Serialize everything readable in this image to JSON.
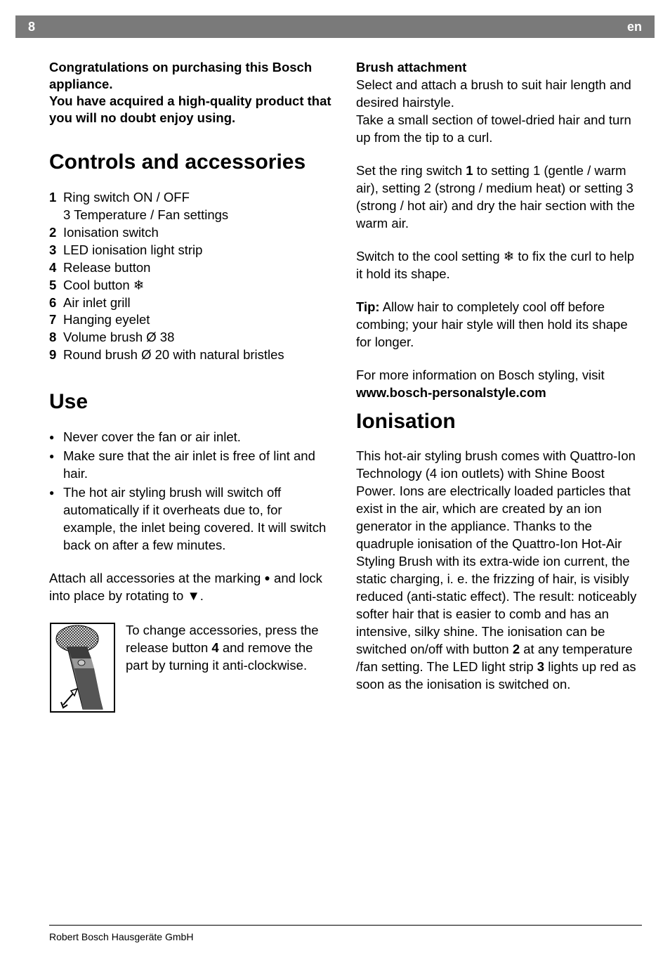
{
  "header": {
    "page": "8",
    "lang": "en"
  },
  "intro": "Congratulations on purchasing this Bosch appliance.\nYou have acquired a high-quality product that you will no doubt enjoy using.",
  "section1": {
    "title": "Controls and accessories",
    "items": [
      {
        "n": "1",
        "t": "Ring switch ON / OFF"
      },
      {
        "n": "",
        "t": "3 Temperature / Fan settings",
        "indent": true
      },
      {
        "n": "2",
        "t": "Ionisation switch"
      },
      {
        "n": "3",
        "t": "LED ionisation light strip"
      },
      {
        "n": "4",
        "t": "Release button"
      },
      {
        "n": "5",
        "t": "Cool button ❄"
      },
      {
        "n": "6",
        "t": "Air inlet grill"
      },
      {
        "n": "7",
        "t": "Hanging eyelet"
      },
      {
        "n": "8",
        "t": "Volume brush Ø 38"
      },
      {
        "n": "9",
        "t": "Round brush Ø 20 with natural bristles"
      }
    ]
  },
  "section2": {
    "title": "Use",
    "bullets": [
      "Never cover the fan or air inlet.",
      "Make sure that the air inlet is free of lint and hair.",
      "The hot air styling brush will switch off automatically if it overheats due to, for  example, the inlet being covered. It will switch back on after a few minutes."
    ],
    "attach_pre": "Attach all accessories at the marking ",
    "attach_mid": " and lock into place by rotating to ",
    "attach_end": ".",
    "change": "To change accessories, press the release button ",
    "change_num": "4",
    "change_end": " and remove the part by turning it anti-clock­wise."
  },
  "right": {
    "brush_heading": "Brush attachment",
    "brush1": "Select and attach a brush to suit hair length and desired hairstyle.",
    "brush2": "Take a small section of towel-dried hair and turn up from the tip to a curl.",
    "setring_a": "Set the ring switch ",
    "setring_b": "1",
    "setring_c": " to setting 1 (gen­tle / warm air), setting 2 (strong / medium heat) or setting 3 (strong / hot air) and dry the hair section with the warm air.",
    "cool": "Switch to the cool setting ❄ to fix the curl to help it hold its shape.",
    "tip_label": "Tip:",
    "tip": " Allow hair to completely cool off before combing; your hair style will then hold its shape for longer.",
    "moreinfo_a": "For more information on Bosch styling, visit ",
    "moreinfo_b": "www.bosch-personalstyle.com",
    "ion_title": "Ionisation",
    "ion_a": "This hot-air styling brush comes with Quattro-Ion Technology (4 ion outlets) with Shine Boost Power. Ions are electrically loaded particles that exist in the air, which are created by an ion generator in the appliance. Thanks to the quadruple ionisation of the Quattro-Ion Hot-Air Styling Brush with its extra-wide ion current, the static charging, i. e. the frizzing of hair, is visibly reduced (anti-static effect). The result: noticeably softer hair that is easier to comb and has an intensive, silky shine. The ionisation can be switched on/off with button ",
    "ion_b": "2",
    "ion_c": " at any temperature /fan setting. The LED light strip ",
    "ion_d": "3",
    "ion_e": " lights up red as soon as the ionisation is switched on."
  },
  "footer": "Robert Bosch Hausgeräte GmbH"
}
